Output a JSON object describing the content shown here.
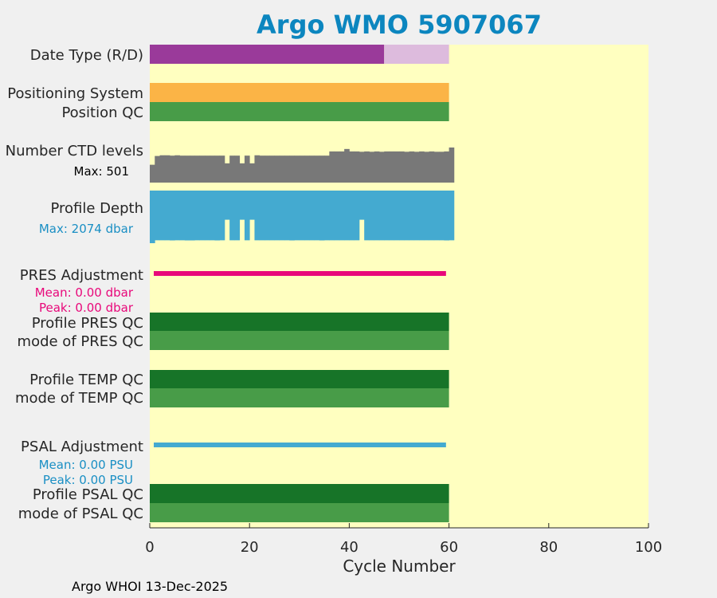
{
  "chart_data": {
    "type": "bar",
    "title": "Argo WMO 5907067",
    "xlabel": "Cycle Number",
    "xlim": [
      0,
      100
    ],
    "xticks": [
      0,
      20,
      40,
      60,
      80,
      100
    ],
    "n_cycles": 60,
    "rows": [
      {
        "key": "date_type",
        "label": "Date Type (R/D)",
        "kind": "segments",
        "segments": [
          {
            "from": 0,
            "to": 47,
            "color": "#9a3a9a",
            "value": "R"
          },
          {
            "from": 47,
            "to": 60,
            "color": "#ddbbdd",
            "value": "D"
          }
        ]
      },
      {
        "key": "positioning",
        "label": "Positioning System",
        "kind": "segments",
        "segments": [
          {
            "from": 0,
            "to": 60,
            "color": "#fbb446",
            "value": "GPS"
          }
        ]
      },
      {
        "key": "position_qc",
        "label": "Position QC",
        "kind": "segments",
        "segments": [
          {
            "from": 0,
            "to": 60,
            "color": "#489c48",
            "value": "1"
          }
        ]
      },
      {
        "key": "ctd_levels",
        "label": "Number CTD levels",
        "kind": "profile",
        "sublabel": "Max: 501",
        "max": 501,
        "color": "#787878",
        "values": [
          255,
          380,
          390,
          390,
          385,
          390,
          385,
          385,
          385,
          385,
          385,
          385,
          385,
          385,
          385,
          275,
          385,
          385,
          275,
          385,
          275,
          390,
          385,
          385,
          385,
          385,
          385,
          385,
          385,
          385,
          385,
          385,
          385,
          385,
          385,
          385,
          445,
          445,
          445,
          480,
          445,
          445,
          440,
          445,
          440,
          445,
          440,
          445,
          445,
          445,
          445,
          440,
          445,
          440,
          445,
          440,
          445,
          440,
          440,
          445,
          501
        ],
        "ylim": [
          0,
          501
        ]
      },
      {
        "key": "profile_depth",
        "label": "Profile Depth",
        "kind": "profile",
        "sublabel": "Max: 2074 dbar",
        "max": 2074,
        "color": "#44aad0",
        "values": [
          2074,
          1960,
          1960,
          1960,
          1965,
          1960,
          1960,
          1965,
          1965,
          1960,
          1960,
          1960,
          1960,
          1965,
          1960,
          1150,
          1960,
          1960,
          1150,
          1960,
          1150,
          1960,
          1960,
          1960,
          1960,
          1960,
          1960,
          1960,
          1965,
          1960,
          1960,
          1960,
          1960,
          1960,
          1965,
          1960,
          1960,
          1960,
          1960,
          1960,
          1960,
          1960,
          1150,
          1960,
          1960,
          1960,
          1960,
          1960,
          1960,
          1960,
          1960,
          1960,
          1960,
          1960,
          1960,
          1960,
          1960,
          1960,
          1960,
          1965,
          1960
        ],
        "ylim": [
          0,
          2074
        ]
      },
      {
        "key": "pres_adjustment",
        "label": "PRES Adjustment",
        "kind": "line",
        "color": "#e8087a",
        "sublabels": [
          "Mean: 0.00 dbar",
          "Peak: 0.00 dbar"
        ],
        "mean": 0.0,
        "peak": 0.0
      },
      {
        "key": "profile_pres_qc",
        "label": "Profile PRES QC",
        "kind": "segments",
        "segments": [
          {
            "from": 0,
            "to": 60,
            "color": "#177428",
            "value": "A"
          }
        ]
      },
      {
        "key": "mode_pres_qc",
        "label": "mode of PRES QC",
        "kind": "segments",
        "segments": [
          {
            "from": 0,
            "to": 60,
            "color": "#489c48",
            "value": "1"
          }
        ]
      },
      {
        "key": "profile_temp_qc",
        "label": "Profile TEMP QC",
        "kind": "segments",
        "segments": [
          {
            "from": 0,
            "to": 60,
            "color": "#177428",
            "value": "A"
          }
        ]
      },
      {
        "key": "mode_temp_qc",
        "label": "mode of TEMP QC",
        "kind": "segments",
        "segments": [
          {
            "from": 0,
            "to": 60,
            "color": "#489c48",
            "value": "1"
          }
        ]
      },
      {
        "key": "psal_adjustment",
        "label": "PSAL Adjustment",
        "kind": "line",
        "color": "#44aad0",
        "sublabels": [
          "Mean: 0.00 PSU",
          "Peak: 0.00 PSU"
        ],
        "mean": 0.0,
        "peak": 0.0
      },
      {
        "key": "profile_psal_qc",
        "label": "Profile PSAL QC",
        "kind": "segments",
        "segments": [
          {
            "from": 0,
            "to": 60,
            "color": "#177428",
            "value": "A"
          }
        ]
      },
      {
        "key": "mode_psal_qc",
        "label": "mode of PSAL QC",
        "kind": "segments",
        "segments": [
          {
            "from": 0,
            "to": 60,
            "color": "#489c48",
            "value": "1"
          }
        ]
      }
    ],
    "colors": {
      "background": "#ffffc0",
      "figure": "#f0f0f0",
      "title": "#0c86bf",
      "ctd_sublabel": "#000000",
      "depth_sublabel": "#1a8fc4",
      "pres_sublabel": "#e8087a",
      "psal_sublabel": "#1a8fc4"
    }
  },
  "footer": "Argo WHOI 13-Dec-2025"
}
